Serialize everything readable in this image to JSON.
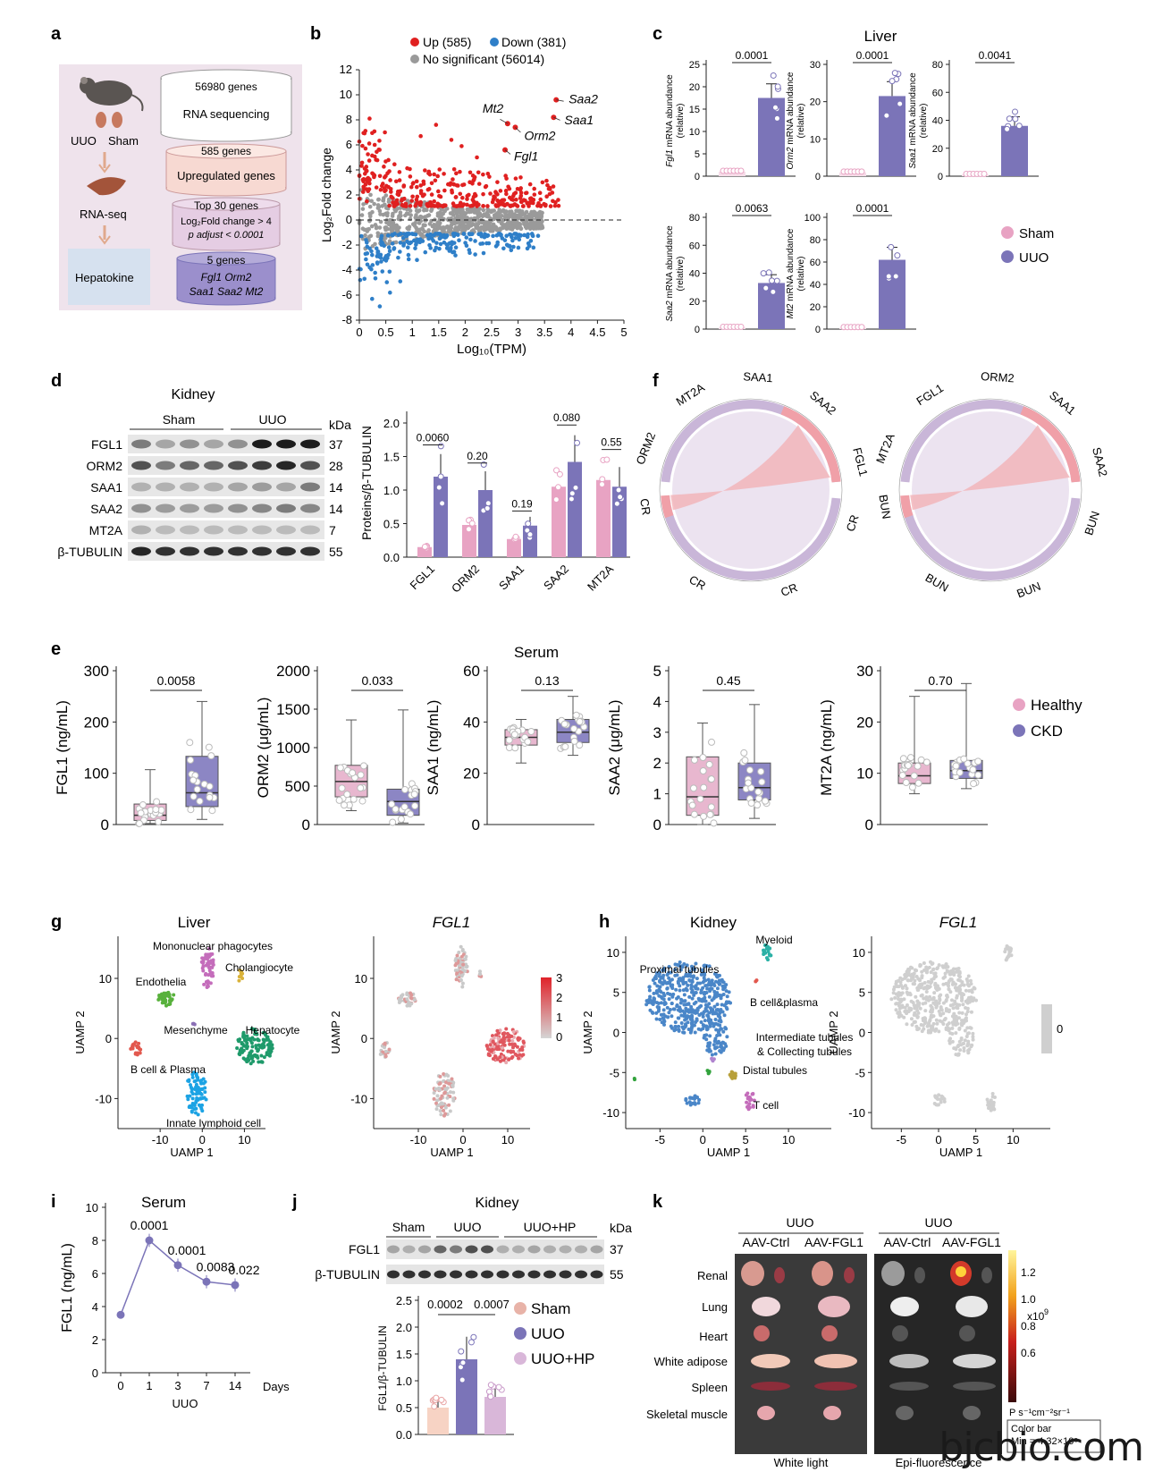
{
  "panel_letters": [
    "a",
    "b",
    "c",
    "d",
    "e",
    "f",
    "g",
    "h",
    "i",
    "j",
    "k"
  ],
  "colors": {
    "sham": "#e8a3c3",
    "uuo": "#7b74b8",
    "healthy": "#e8a3c3",
    "ckd": "#7b74b8",
    "up": "#e02020",
    "down": "#2f7fc8",
    "ns": "#9a9a9a",
    "hp": "#d9b7d9",
    "pink_bg": "#f0dfe8",
    "blue_bg": "#d6e1ef"
  },
  "panel_a": {
    "mouse_labels": [
      "UUO",
      "Sham"
    ],
    "rna_seq": "RNA-seq",
    "hepatokine": "Hepatokine",
    "steps": [
      "56980 genes",
      "RNA sequencing",
      "585 genes",
      "Upregulated genes",
      "Top 30 genes",
      "Log₂Fold change > 4",
      "p adjust < 0.0001",
      "5 genes",
      "Fgl1  Orm2",
      "Saa1 Saa2 Mt2"
    ]
  },
  "panel_b": {
    "legend": [
      "Up (585)",
      "Down (381)",
      "No significant (56014)"
    ],
    "ylabel": "Log₂Fold change",
    "xlabel": "Log₁₀(TPM)",
    "xticks": [
      "0",
      "0.5",
      "1",
      "1.5",
      "2",
      "2.5",
      "3",
      "3.5",
      "4",
      "4.5",
      "5"
    ],
    "yticks": [
      "12",
      "10",
      "8",
      "6",
      "4",
      "2",
      "0",
      "-2",
      "-4",
      "-6",
      "-8"
    ],
    "genes": [
      "Saa2",
      "Mt2",
      "Saa1",
      "Orm2",
      "Fgl1"
    ]
  },
  "panel_c": {
    "title": "Liver",
    "legend": [
      "Sham",
      "UUO"
    ],
    "plots": [
      {
        "ylabel": "Fgl1 mRNA abundance",
        "sub": "(relative)",
        "p": "0.0001",
        "yticks": [
          "0",
          "5",
          "10",
          "15",
          "20",
          "25"
        ]
      },
      {
        "ylabel": "Orm2 mRNA abundance",
        "sub": "(relative)",
        "p": "0.0001",
        "yticks": [
          "0",
          "10",
          "20",
          "30"
        ]
      },
      {
        "ylabel": "Saa1 mRNA abundance",
        "sub": "(relative)",
        "p": "0.0041",
        "yticks": [
          "0",
          "20",
          "40",
          "60",
          "80"
        ]
      },
      {
        "ylabel": "Saa2 mRNA abundance",
        "sub": "(relative)",
        "p": "0.0063",
        "yticks": [
          "0",
          "20",
          "40",
          "60",
          "80"
        ]
      },
      {
        "ylabel": "Mt2 mRNA abundance",
        "sub": "(relative)",
        "p": "0.0001",
        "yticks": [
          "0",
          "20",
          "40",
          "60",
          "80",
          "100"
        ]
      }
    ]
  },
  "panel_d": {
    "title": "Kidney",
    "groups": [
      "Sham",
      "UUO"
    ],
    "kda": "kDa",
    "rows": [
      {
        "name": "FGL1",
        "kda": "37"
      },
      {
        "name": "ORM2",
        "kda": "28"
      },
      {
        "name": "SAA1",
        "kda": "14"
      },
      {
        "name": "SAA2",
        "kda": "14"
      },
      {
        "name": "MT2A",
        "kda": "7"
      },
      {
        "name": "β-TUBULIN",
        "kda": "55"
      }
    ],
    "ylabel": "Proteins/β-TUBULIN",
    "yticks": [
      "0.0",
      "0.5",
      "1.0",
      "1.5",
      "2.0"
    ],
    "categories": [
      "FGL1",
      "ORM2",
      "SAA1",
      "SAA2",
      "MT2A"
    ],
    "pvals": [
      "0.0060",
      "0.20",
      "0.19",
      "0.080",
      "0.55"
    ]
  },
  "panel_e": {
    "title": "Serum",
    "legend": [
      "Healthy",
      "CKD"
    ],
    "plots": [
      {
        "ylabel": "FGL1 (ng/mL)",
        "p": "0.0058",
        "yticks": [
          "0",
          "100",
          "200",
          "300"
        ]
      },
      {
        "ylabel": "ORM2 (μg/mL)",
        "p": "0.033",
        "yticks": [
          "0",
          "500",
          "1000",
          "1500",
          "2000"
        ]
      },
      {
        "ylabel": "SAA1 (ng/mL)",
        "p": "0.13",
        "yticks": [
          "0",
          "20",
          "40",
          "60"
        ]
      },
      {
        "ylabel": "SAA2 (μg/mL)",
        "p": "0.45",
        "yticks": [
          "0",
          "1",
          "2",
          "3",
          "4",
          "5"
        ]
      },
      {
        "ylabel": "MT2A (ng/mL)",
        "p": "0.70",
        "yticks": [
          "0",
          "10",
          "20",
          "30"
        ]
      }
    ]
  },
  "panel_f": {
    "left_labels": [
      "MT2A",
      "SAA1",
      "SAA2",
      "FGL1",
      "ORM2",
      "CR",
      "CR",
      "CR",
      "CR"
    ],
    "right_labels": [
      "ORM2",
      "SAA1",
      "SAA2",
      "FGL1",
      "MT2A",
      "BUN",
      "BUN",
      "BUN",
      "BUN"
    ]
  },
  "panel_g": {
    "title": "Liver",
    "title2": "FGL1",
    "xlabel": "UAMP 1",
    "ylabel": "UAMP 2",
    "clusters": [
      "Mononuclear phagocytes",
      "Cholangiocyte",
      "Endothelia",
      "Mesenchyme",
      "Hepatocyte",
      "B cell & Plasma",
      "Innate lymphoid cell"
    ],
    "xticks": [
      "-10",
      "0",
      "10"
    ],
    "yticks": [
      "10",
      "0",
      "-10"
    ],
    "colorbar": [
      "3",
      "2",
      "1",
      "0"
    ]
  },
  "panel_h": {
    "title": "Kidney",
    "title2": "FGL1",
    "xlabel": "UAMP 1",
    "ylabel": "UAMP 2",
    "clusters": [
      "Myeloid",
      "Proximal tubules",
      "B cell&plasma",
      "Intermediate tubules",
      "& Collecting tubules",
      "Distal tubules",
      "T cell"
    ],
    "xticks": [
      "-5",
      "0",
      "5",
      "10"
    ],
    "yticks": [
      "10",
      "5",
      "0",
      "-5",
      "-10"
    ],
    "colorbar": [
      "0"
    ]
  },
  "panel_i": {
    "title": "Serum",
    "ylabel": "FGL1 (ng/mL)",
    "xlabel": "UUO",
    "days": "Days",
    "xticks": [
      "0",
      "1",
      "3",
      "7",
      "14"
    ],
    "yticks": [
      "0",
      "2",
      "4",
      "6",
      "8",
      "10"
    ],
    "pvals": [
      "0.0001",
      "0.0001",
      "0.0083",
      "0.022"
    ]
  },
  "panel_j": {
    "title": "Kidney",
    "groups": [
      "Sham",
      "UUO",
      "UUO+HP"
    ],
    "kda": "kDa",
    "rows": [
      {
        "name": "FGL1",
        "kda": "37"
      },
      {
        "name": "β-TUBULIN",
        "kda": "55"
      }
    ],
    "ylabel": "FGL1/β-TUBULIN",
    "yticks": [
      "0.0",
      "0.5",
      "1.0",
      "1.5",
      "2.0",
      "2.5"
    ],
    "pvals": [
      "0.0002",
      "0.0007"
    ],
    "legend": [
      "Sham",
      "UUO",
      "UUO+HP"
    ]
  },
  "panel_k": {
    "group_title": "UUO",
    "columns": [
      "AAV-Ctrl",
      "AAV-FGL1",
      "AAV-Ctrl",
      "AAV-FGL1"
    ],
    "organs": [
      "Renal",
      "Lung",
      "Heart",
      "White adipose",
      "Spleen",
      "Skeletal muscle"
    ],
    "captions": [
      "White light",
      "Epi-fluorescence"
    ],
    "colorbar_ticks": [
      "1.2",
      "1.0",
      "0.8",
      "0.6"
    ],
    "colorbar_exp": "x10",
    "colorbar_pow": "9",
    "units": "P s⁻¹cm⁻²sr⁻¹",
    "box": [
      "Color bar",
      "Min = 4.32×10⁸"
    ]
  },
  "chart_data": [
    {
      "type": "scatter",
      "panel": "b",
      "xlabel": "Log₁₀(TPM)",
      "ylabel": "Log₂Fold change",
      "xlim": [
        0,
        5
      ],
      "ylim": [
        -8,
        12
      ],
      "series": [
        {
          "name": "Up (585)",
          "count": 585
        },
        {
          "name": "Down (381)",
          "count": 381
        },
        {
          "name": "No significant (56014)",
          "count": 56014
        }
      ],
      "highlighted": [
        {
          "gene": "Saa2",
          "x": 3.85,
          "y": 9.6
        },
        {
          "gene": "Saa1",
          "x": 3.8,
          "y": 8.2
        },
        {
          "gene": "Mt2",
          "x": 2.9,
          "y": 7.7
        },
        {
          "gene": "Orm2",
          "x": 3.05,
          "y": 7.4
        },
        {
          "gene": "Fgl1",
          "x": 2.85,
          "y": 5.6
        }
      ]
    },
    {
      "type": "bar",
      "panel": "c",
      "categories": [
        "Sham",
        "UUO"
      ],
      "series": [
        {
          "name": "Fgl1",
          "values": [
            1,
            17.5
          ]
        },
        {
          "name": "Orm2",
          "values": [
            1,
            21.5
          ]
        },
        {
          "name": "Saa1",
          "values": [
            1,
            36
          ]
        },
        {
          "name": "Saa2",
          "values": [
            1,
            33
          ]
        },
        {
          "name": "Mt2",
          "values": [
            1,
            62
          ]
        }
      ]
    },
    {
      "type": "bar",
      "panel": "d",
      "categories": [
        "FGL1",
        "ORM2",
        "SAA1",
        "SAA2",
        "MT2A"
      ],
      "ylim": [
        0,
        2
      ],
      "series": [
        {
          "name": "Sham",
          "values": [
            0.15,
            0.48,
            0.27,
            1.05,
            1.15
          ]
        },
        {
          "name": "UUO",
          "values": [
            1.2,
            1.0,
            0.47,
            1.42,
            1.05
          ]
        }
      ]
    },
    {
      "type": "box",
      "panel": "e",
      "categories": [
        "FGL1",
        "ORM2",
        "SAA1",
        "SAA2",
        "MT2A"
      ],
      "series": [
        {
          "name": "Healthy",
          "medians": [
            18,
            560,
            34,
            0.9,
            9.5
          ]
        },
        {
          "name": "CKD",
          "medians": [
            62,
            300,
            36,
            1.2,
            10.5
          ]
        }
      ]
    },
    {
      "type": "line",
      "panel": "i",
      "x": [
        0,
        1,
        3,
        7,
        14
      ],
      "y": [
        3.5,
        8.0,
        6.5,
        5.5,
        5.3
      ],
      "ylim": [
        0,
        10
      ]
    },
    {
      "type": "bar",
      "panel": "j",
      "categories": [
        "Sham",
        "UUO",
        "UUO+HP"
      ],
      "values": [
        0.5,
        1.4,
        0.7
      ],
      "ylim": [
        0,
        2.5
      ]
    }
  ]
}
